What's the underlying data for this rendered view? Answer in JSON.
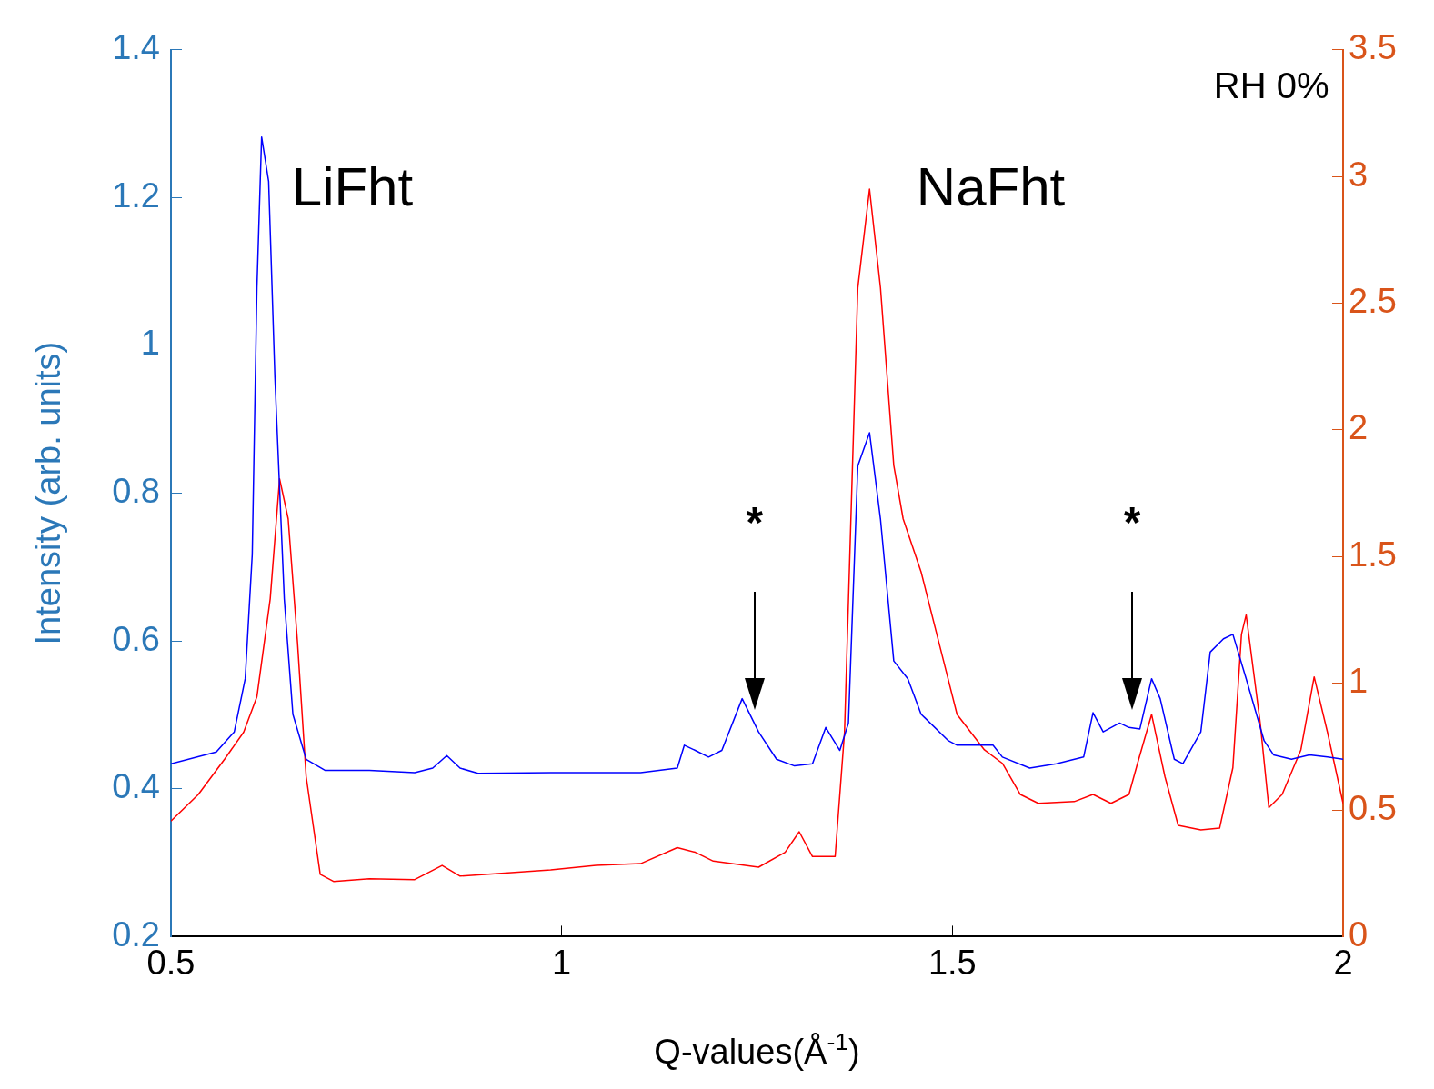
{
  "chart_data": {
    "type": "line",
    "xlabel": "Q-values(Å$^{-1}$)",
    "ylabel": "Intensity (arb. units)",
    "xlim": [
      0.5,
      2
    ],
    "xticks": [
      0.5,
      1,
      1.5,
      2
    ],
    "ylim": [
      0.2,
      1.4
    ],
    "yticks": [
      0.2,
      0.4,
      0.6,
      0.8,
      1,
      1.2,
      1.4
    ],
    "y2lim": [
      0,
      3.5
    ],
    "y2ticks": [
      0,
      0.5,
      1,
      1.5,
      2,
      2.5,
      3,
      3.5
    ],
    "grid": false,
    "legend": false,
    "marker": "none",
    "line_style": "solid",
    "annotations": [
      "RH 0%",
      "LiFht",
      "NaFht",
      "*",
      "*"
    ],
    "series": [
      {
        "color": "#0000ff",
        "x": [
          0.5,
          0.558,
          0.581,
          0.595,
          0.604,
          0.61,
          0.616,
          0.625,
          0.633,
          0.645,
          0.656,
          0.673,
          0.697,
          0.754,
          0.812,
          0.835,
          0.853,
          0.87,
          0.893,
          0.986,
          1.101,
          1.148,
          1.157,
          1.171,
          1.188,
          1.205,
          1.231,
          1.252,
          1.275,
          1.298,
          1.321,
          1.338,
          1.356,
          1.367,
          1.379,
          1.394,
          1.408,
          1.425,
          1.443,
          1.46,
          1.495,
          1.506,
          1.552,
          1.564,
          1.599,
          1.633,
          1.668,
          1.68,
          1.693,
          1.714,
          1.726,
          1.74,
          1.755,
          1.766,
          1.784,
          1.795,
          1.818,
          1.83,
          1.847,
          1.859,
          1.876,
          1.899,
          1.911,
          1.934,
          1.957,
          1.98,
          2.0
        ],
        "values": [
          0.434,
          0.45,
          0.477,
          0.549,
          0.717,
          1.078,
          1.282,
          1.222,
          0.957,
          0.657,
          0.501,
          0.44,
          0.425,
          0.425,
          0.422,
          0.428,
          0.445,
          0.428,
          0.421,
          0.422,
          0.422,
          0.428,
          0.459,
          0.452,
          0.443,
          0.452,
          0.522,
          0.477,
          0.44,
          0.431,
          0.434,
          0.483,
          0.452,
          0.489,
          0.837,
          0.882,
          0.765,
          0.573,
          0.549,
          0.501,
          0.465,
          0.459,
          0.459,
          0.443,
          0.428,
          0.434,
          0.443,
          0.503,
          0.477,
          0.489,
          0.483,
          0.481,
          0.549,
          0.522,
          0.44,
          0.434,
          0.477,
          0.585,
          0.603,
          0.609,
          0.549,
          0.465,
          0.446,
          0.44,
          0.446,
          0.443,
          0.44
        ]
      },
      {
        "color": "#ff0000",
        "axis": "y2",
        "x": [
          0.5,
          0.535,
          0.569,
          0.593,
          0.61,
          0.627,
          0.639,
          0.65,
          0.662,
          0.673,
          0.691,
          0.708,
          0.754,
          0.812,
          0.847,
          0.87,
          0.986,
          1.044,
          1.101,
          1.148,
          1.171,
          1.194,
          1.252,
          1.286,
          1.304,
          1.321,
          1.35,
          1.362,
          1.379,
          1.394,
          1.408,
          1.425,
          1.437,
          1.46,
          1.483,
          1.506,
          1.541,
          1.564,
          1.587,
          1.61,
          1.656,
          1.68,
          1.703,
          1.726,
          1.737,
          1.755,
          1.772,
          1.789,
          1.818,
          1.842,
          1.859,
          1.87,
          1.876,
          1.894,
          1.905,
          1.922,
          1.946,
          1.963,
          1.98,
          2.0
        ],
        "values": [
          0.456,
          0.561,
          0.702,
          0.807,
          0.947,
          1.333,
          1.807,
          1.649,
          1.158,
          0.632,
          0.246,
          0.218,
          0.228,
          0.225,
          0.281,
          0.239,
          0.263,
          0.281,
          0.288,
          0.351,
          0.333,
          0.298,
          0.274,
          0.333,
          0.414,
          0.316,
          0.316,
          0.807,
          2.561,
          2.95,
          2.561,
          1.86,
          1.649,
          1.439,
          1.158,
          0.877,
          0.737,
          0.684,
          0.561,
          0.526,
          0.533,
          0.561,
          0.526,
          0.561,
          0.684,
          0.877,
          0.632,
          0.439,
          0.421,
          0.428,
          0.667,
          1.193,
          1.27,
          0.842,
          0.509,
          0.561,
          0.737,
          1.025,
          0.807,
          0.526
        ]
      }
    ]
  }
}
